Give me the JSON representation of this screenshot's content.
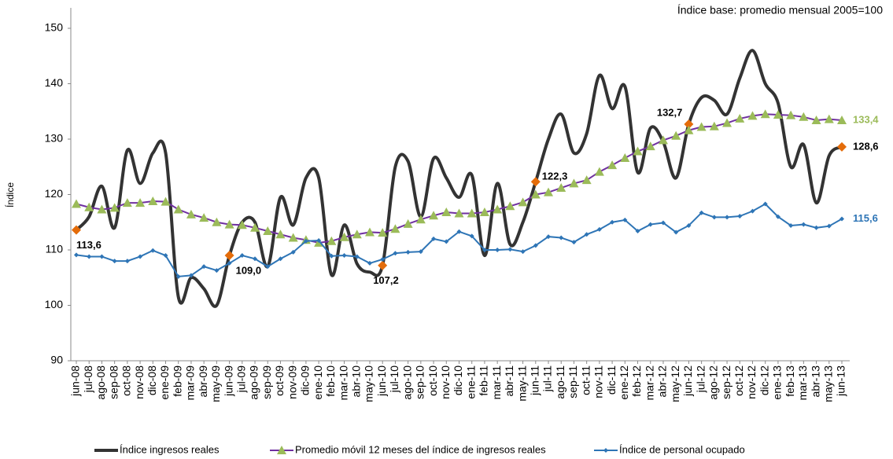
{
  "chart_data": {
    "type": "line",
    "title": "Índice base: promedio mensual 2005=100",
    "y_label": "Índice",
    "categories": [
      "jun-08",
      "jul-08",
      "ago-08",
      "sep-08",
      "oct-08",
      "nov-08",
      "dic-08",
      "ene-09",
      "feb-09",
      "mar-09",
      "abr-09",
      "may-09",
      "jun-09",
      "jul-09",
      "ago-09",
      "sep-09",
      "oct-09",
      "nov-09",
      "dic-09",
      "ene-10",
      "feb-10",
      "mar-10",
      "abr-10",
      "may-10",
      "jun-10",
      "jul-10",
      "ago-10",
      "sep-10",
      "oct-10",
      "nov-10",
      "dic-10",
      "ene-11",
      "feb-11",
      "mar-11",
      "abr-11",
      "may-11",
      "jun-11",
      "jul-11",
      "ago-11",
      "sep-11",
      "oct-11",
      "nov-11",
      "dic-11",
      "ene-12",
      "feb-12",
      "mar-12",
      "abr-12",
      "may-12",
      "jun-12",
      "jul-12",
      "ago-12",
      "sep-12",
      "oct-12",
      "nov-12",
      "dic-12",
      "ene-13",
      "feb-13",
      "mar-13",
      "abr-13",
      "may-13",
      "jun-13"
    ],
    "ylim": [
      90,
      150
    ],
    "yticks": [
      90,
      100,
      110,
      120,
      130,
      140,
      150
    ],
    "series": [
      {
        "name": "Índice ingresos reales",
        "color": "#333333",
        "marker": "none",
        "highlight_color": "#e46c0a",
        "values": [
          113.6,
          116,
          121.5,
          114,
          128,
          122,
          127.5,
          127.5,
          101.5,
          105,
          103,
          100,
          109.0,
          115,
          115,
          107,
          119.5,
          114.5,
          123,
          123,
          105.5,
          114.5,
          107.5,
          106,
          107.2,
          125,
          126,
          116,
          126.5,
          123,
          119.5,
          123.5,
          109,
          122,
          111,
          115,
          122.3,
          130,
          134.5,
          127.5,
          131,
          141.5,
          135.5,
          139.5,
          124,
          132,
          129.5,
          123,
          132.7,
          137.5,
          137,
          134.5,
          141,
          146,
          140,
          136.5,
          125,
          129,
          118.5,
          127,
          128.6
        ],
        "value_labels": [
          "113,6",
          null,
          null,
          null,
          null,
          null,
          null,
          null,
          null,
          null,
          null,
          null,
          "109,0",
          null,
          null,
          null,
          null,
          null,
          null,
          null,
          null,
          null,
          null,
          null,
          "107,2",
          null,
          null,
          null,
          null,
          null,
          null,
          null,
          null,
          null,
          null,
          null,
          "122,3",
          null,
          null,
          null,
          null,
          null,
          null,
          null,
          null,
          null,
          null,
          null,
          "132,7",
          null,
          null,
          null,
          null,
          null,
          null,
          null,
          null,
          null,
          null,
          null,
          "128,6"
        ]
      },
      {
        "name": "Promedio móvil 12 meses del índice de ingresos reales",
        "color": "#7030a0",
        "marker": "triangle",
        "marker_color": "#9bbb59",
        "values": [
          118.3,
          117.7,
          117.3,
          117.6,
          118.5,
          118.5,
          118.8,
          118.7,
          117.3,
          116.4,
          115.8,
          115.0,
          114.6,
          114.5,
          114.0,
          113.4,
          112.8,
          112.2,
          111.8,
          111.3,
          111.6,
          112.3,
          112.8,
          113.2,
          113.1,
          113.8,
          114.7,
          115.5,
          116.2,
          116.8,
          116.6,
          116.6,
          116.8,
          117.3,
          117.9,
          118.6,
          120.0,
          120.4,
          121.2,
          122.0,
          122.6,
          124.1,
          125.3,
          126.6,
          127.8,
          128.7,
          129.8,
          130.6,
          131.6,
          132.2,
          132.3,
          132.9,
          133.7,
          134.2,
          134.5,
          134.4,
          134.3,
          134.0,
          133.4,
          133.6,
          133.4
        ],
        "value_labels": [
          null,
          null,
          null,
          null,
          null,
          null,
          null,
          null,
          null,
          null,
          null,
          null,
          null,
          null,
          null,
          null,
          null,
          null,
          null,
          null,
          null,
          null,
          null,
          null,
          null,
          null,
          null,
          null,
          null,
          null,
          null,
          null,
          null,
          null,
          null,
          null,
          null,
          null,
          null,
          null,
          null,
          null,
          null,
          null,
          null,
          null,
          null,
          null,
          null,
          null,
          null,
          null,
          null,
          null,
          null,
          null,
          null,
          null,
          null,
          null,
          "133,4"
        ]
      },
      {
        "name": "Índice de personal ocupado",
        "color": "#2e75b6",
        "marker": "diamond",
        "marker_color": "#2e75b6",
        "values": [
          109.1,
          108.8,
          108.8,
          108.0,
          108.0,
          108.8,
          109.9,
          109.0,
          105.2,
          105.4,
          107.0,
          106.3,
          107.6,
          109.0,
          108.4,
          107.0,
          108.4,
          109.6,
          111.6,
          111.7,
          108.9,
          109.0,
          108.8,
          107.6,
          108.3,
          109.4,
          109.6,
          109.7,
          112.0,
          111.5,
          113.3,
          112.5,
          110.0,
          110.0,
          110.1,
          109.7,
          110.8,
          112.4,
          112.2,
          111.4,
          112.8,
          113.7,
          115.0,
          115.4,
          113.4,
          114.6,
          114.9,
          113.2,
          114.4,
          116.7,
          115.9,
          115.9,
          116.1,
          117.0,
          118.3,
          116.0,
          114.4,
          114.6,
          114.0,
          114.3,
          115.6
        ],
        "value_labels": [
          null,
          null,
          null,
          null,
          null,
          null,
          null,
          null,
          null,
          null,
          null,
          null,
          null,
          null,
          null,
          null,
          null,
          null,
          null,
          null,
          null,
          null,
          null,
          null,
          null,
          null,
          null,
          null,
          null,
          null,
          null,
          null,
          null,
          null,
          null,
          null,
          null,
          null,
          null,
          null,
          null,
          null,
          null,
          null,
          null,
          null,
          null,
          null,
          null,
          null,
          null,
          null,
          null,
          null,
          null,
          null,
          null,
          null,
          null,
          null,
          "115,6"
        ]
      }
    ]
  }
}
